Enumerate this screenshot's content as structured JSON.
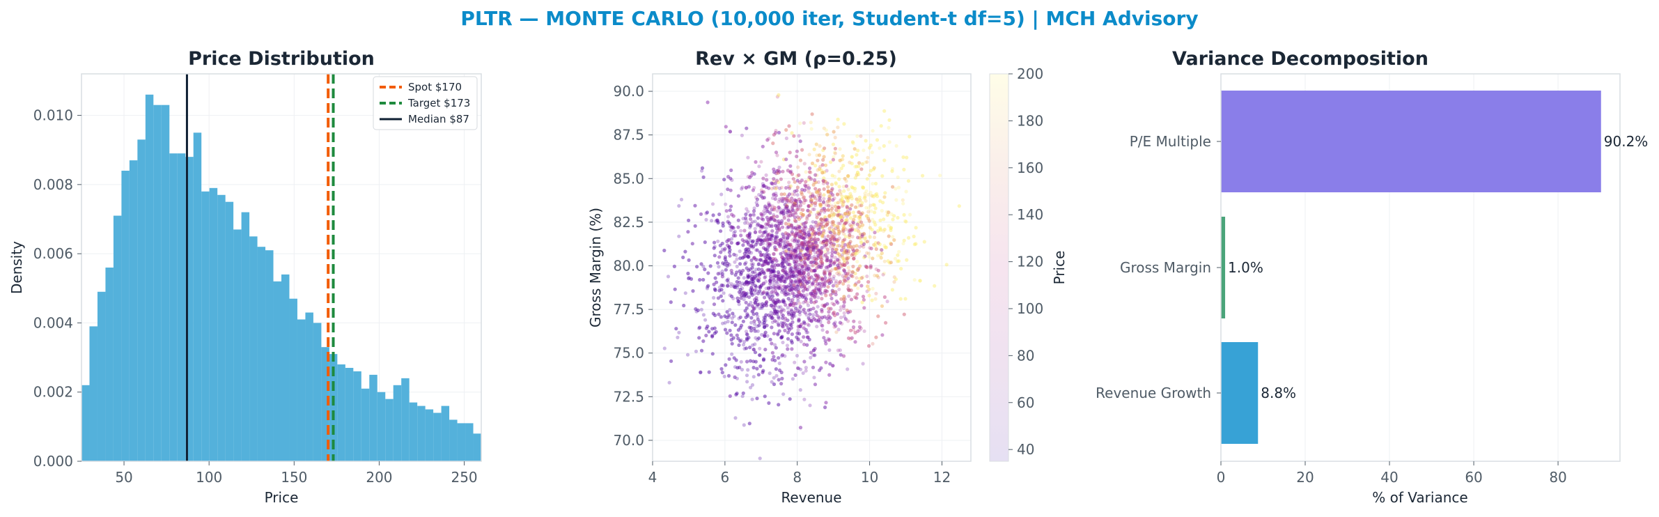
{
  "suptitle": "PLTR — MONTE CARLO (10,000 iter, Student-t df=5) | MCH Advisory",
  "colors": {
    "title": "#0b8bc9",
    "hist": "#4badd9",
    "spot": "#f25c05",
    "target": "#1e8a3e",
    "median": "#0f2033",
    "pe": "#8a7ee9",
    "gm": "#4aa47a",
    "rev": "#37a2d6"
  },
  "chart_data": [
    {
      "type": "bar",
      "subtype": "histogram",
      "title": "Price Distribution",
      "xlabel": "Price",
      "ylabel": "Density",
      "xlim": [
        25,
        260
      ],
      "ylim": [
        0,
        0.0112
      ],
      "xticks": [
        "50",
        "100",
        "150",
        "200",
        "250"
      ],
      "yticks": [
        "0.000",
        "0.002",
        "0.004",
        "0.006",
        "0.008",
        "0.010"
      ],
      "bin_start": 25,
      "bin_width": 4.7,
      "values": [
        0.0022,
        0.0039,
        0.0049,
        0.0056,
        0.0071,
        0.0084,
        0.0087,
        0.0093,
        0.0106,
        0.0103,
        0.0103,
        0.0089,
        0.0089,
        0.0088,
        0.0095,
        0.0078,
        0.0079,
        0.0077,
        0.0075,
        0.0067,
        0.0072,
        0.0065,
        0.0062,
        0.0061,
        0.0052,
        0.0054,
        0.0047,
        0.0041,
        0.0043,
        0.004,
        0.0033,
        0.0031,
        0.0028,
        0.0027,
        0.0026,
        0.0021,
        0.0025,
        0.002,
        0.0018,
        0.0022,
        0.0024,
        0.0017,
        0.0016,
        0.0015,
        0.0014,
        0.0016,
        0.0012,
        0.0011,
        0.0011,
        0.0008,
        0.0007
      ],
      "series": [
        {
          "name": "Spot $170",
          "x": 170,
          "style": "dashed"
        },
        {
          "name": "Target $173",
          "x": 173,
          "style": "dashed"
        },
        {
          "name": "Median $87",
          "x": 87,
          "style": "solid"
        }
      ],
      "grid": true,
      "legend": "top-right"
    },
    {
      "type": "scatter",
      "title": "Rev × GM (ρ=0.25)",
      "xlabel": "Revenue",
      "ylabel": "Gross Margin (%)",
      "colorbar_label": "Price",
      "xlim": [
        4,
        12.8
      ],
      "ylim": [
        68.8,
        91
      ],
      "clim": [
        35,
        200
      ],
      "xticks": [
        "4",
        "6",
        "8",
        "10",
        "12"
      ],
      "yticks": [
        "70.0",
        "72.5",
        "75.0",
        "77.5",
        "80.0",
        "82.5",
        "85.0",
        "87.5",
        "90.0"
      ],
      "cticks": [
        "40",
        "60",
        "80",
        "100",
        "120",
        "140",
        "160",
        "180",
        "200"
      ],
      "points": 10000,
      "x_mean": 8.0,
      "x_sd": 1.25,
      "y_mean": 80.5,
      "y_sd": 3.0,
      "correlation": 0.25,
      "grid": true
    },
    {
      "type": "bar",
      "orientation": "horizontal",
      "title": "Variance Decomposition",
      "xlabel": "% of Variance",
      "categories": [
        "P/E Multiple",
        "Gross Margin",
        "Revenue Growth"
      ],
      "values": [
        90.2,
        1.0,
        8.8
      ],
      "labels": [
        "90.2%",
        "1.0%",
        "8.8%"
      ],
      "xlim": [
        0,
        94.7
      ],
      "xticks": [
        "0",
        "20",
        "40",
        "60",
        "80"
      ],
      "grid": true
    }
  ]
}
